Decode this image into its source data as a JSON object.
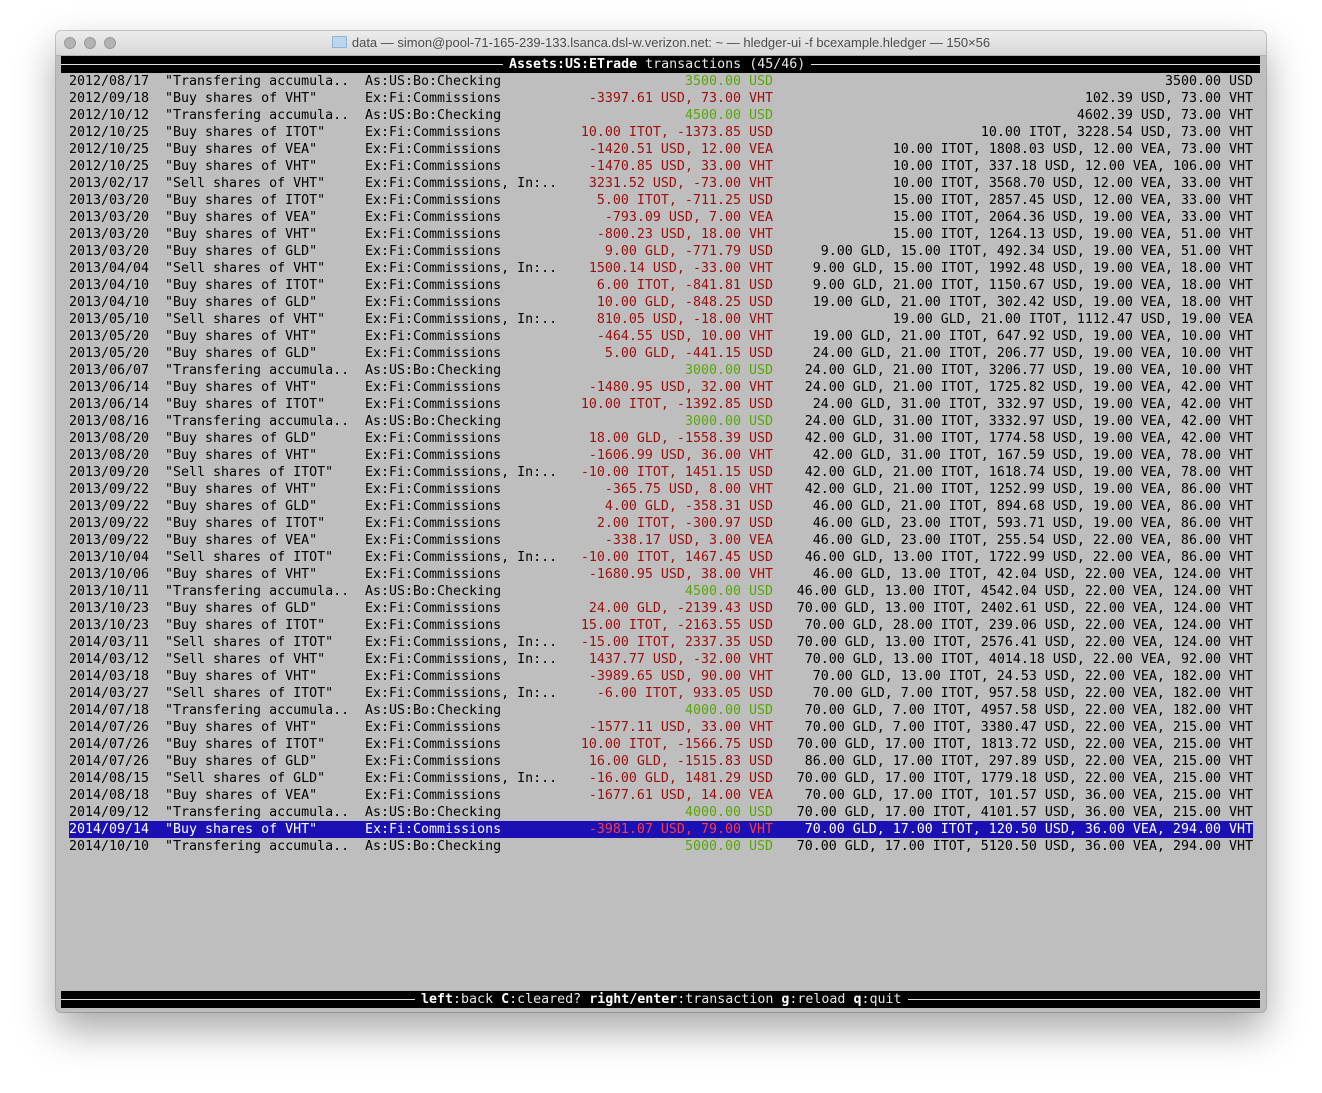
{
  "window": {
    "title": "data — simon@pool-71-165-239-133.lsanca.dsl-w.verizon.net: ~ — hledger-ui -f bcexample.hledger — 150×56"
  },
  "header": {
    "account": "Assets:US:ETrade",
    "label": "transactions",
    "position": "(45/46)"
  },
  "colors": {
    "inflow": "#5aa60a",
    "outflow": "#9b0f0f",
    "selection": "#1b10b3",
    "background": "#bebebe"
  },
  "selected_index": 44,
  "rows": [
    {
      "date": "2012/08/17",
      "desc": "\"Transfering accumula..",
      "account": "As:US:Bo:Checking",
      "amount": "3500.00 USD",
      "balance": "3500.00 USD",
      "kind": "in"
    },
    {
      "date": "2012/09/18",
      "desc": "\"Buy shares of VHT\"",
      "account": "Ex:Fi:Commissions",
      "amount": "-3397.61 USD, 73.00 VHT",
      "balance": "102.39 USD, 73.00 VHT",
      "kind": "out"
    },
    {
      "date": "2012/10/12",
      "desc": "\"Transfering accumula..",
      "account": "As:US:Bo:Checking",
      "amount": "4500.00 USD",
      "balance": "4602.39 USD, 73.00 VHT",
      "kind": "in"
    },
    {
      "date": "2012/10/25",
      "desc": "\"Buy shares of ITOT\"",
      "account": "Ex:Fi:Commissions",
      "amount": "10.00 ITOT, -1373.85 USD",
      "balance": "10.00 ITOT, 3228.54 USD, 73.00 VHT",
      "kind": "out"
    },
    {
      "date": "2012/10/25",
      "desc": "\"Buy shares of VEA\"",
      "account": "Ex:Fi:Commissions",
      "amount": "-1420.51 USD, 12.00 VEA",
      "balance": "10.00 ITOT, 1808.03 USD, 12.00 VEA, 73.00 VHT",
      "kind": "out"
    },
    {
      "date": "2012/10/25",
      "desc": "\"Buy shares of VHT\"",
      "account": "Ex:Fi:Commissions",
      "amount": "-1470.85 USD, 33.00 VHT",
      "balance": "10.00 ITOT, 337.18 USD, 12.00 VEA, 106.00 VHT",
      "kind": "out"
    },
    {
      "date": "2013/02/17",
      "desc": "\"Sell shares of VHT\"",
      "account": "Ex:Fi:Commissions, In:..",
      "amount": "3231.52 USD, -73.00 VHT",
      "balance": "10.00 ITOT, 3568.70 USD, 12.00 VEA, 33.00 VHT",
      "kind": "out"
    },
    {
      "date": "2013/03/20",
      "desc": "\"Buy shares of ITOT\"",
      "account": "Ex:Fi:Commissions",
      "amount": "5.00 ITOT, -711.25 USD",
      "balance": "15.00 ITOT, 2857.45 USD, 12.00 VEA, 33.00 VHT",
      "kind": "out"
    },
    {
      "date": "2013/03/20",
      "desc": "\"Buy shares of VEA\"",
      "account": "Ex:Fi:Commissions",
      "amount": "-793.09 USD, 7.00 VEA",
      "balance": "15.00 ITOT, 2064.36 USD, 19.00 VEA, 33.00 VHT",
      "kind": "out"
    },
    {
      "date": "2013/03/20",
      "desc": "\"Buy shares of VHT\"",
      "account": "Ex:Fi:Commissions",
      "amount": "-800.23 USD, 18.00 VHT",
      "balance": "15.00 ITOT, 1264.13 USD, 19.00 VEA, 51.00 VHT",
      "kind": "out"
    },
    {
      "date": "2013/03/20",
      "desc": "\"Buy shares of GLD\"",
      "account": "Ex:Fi:Commissions",
      "amount": "9.00 GLD, -771.79 USD",
      "balance": "9.00 GLD, 15.00 ITOT, 492.34 USD, 19.00 VEA, 51.00 VHT",
      "kind": "out"
    },
    {
      "date": "2013/04/04",
      "desc": "\"Sell shares of VHT\"",
      "account": "Ex:Fi:Commissions, In:..",
      "amount": "1500.14 USD, -33.00 VHT",
      "balance": "9.00 GLD, 15.00 ITOT, 1992.48 USD, 19.00 VEA, 18.00 VHT",
      "kind": "out"
    },
    {
      "date": "2013/04/10",
      "desc": "\"Buy shares of ITOT\"",
      "account": "Ex:Fi:Commissions",
      "amount": "6.00 ITOT, -841.81 USD",
      "balance": "9.00 GLD, 21.00 ITOT, 1150.67 USD, 19.00 VEA, 18.00 VHT",
      "kind": "out"
    },
    {
      "date": "2013/04/10",
      "desc": "\"Buy shares of GLD\"",
      "account": "Ex:Fi:Commissions",
      "amount": "10.00 GLD, -848.25 USD",
      "balance": "19.00 GLD, 21.00 ITOT, 302.42 USD, 19.00 VEA, 18.00 VHT",
      "kind": "out"
    },
    {
      "date": "2013/05/10",
      "desc": "\"Sell shares of VHT\"",
      "account": "Ex:Fi:Commissions, In:..",
      "amount": "810.05 USD, -18.00 VHT",
      "balance": "19.00 GLD, 21.00 ITOT, 1112.47 USD, 19.00 VEA",
      "kind": "out"
    },
    {
      "date": "2013/05/20",
      "desc": "\"Buy shares of VHT\"",
      "account": "Ex:Fi:Commissions",
      "amount": "-464.55 USD, 10.00 VHT",
      "balance": "19.00 GLD, 21.00 ITOT, 647.92 USD, 19.00 VEA, 10.00 VHT",
      "kind": "out"
    },
    {
      "date": "2013/05/20",
      "desc": "\"Buy shares of GLD\"",
      "account": "Ex:Fi:Commissions",
      "amount": "5.00 GLD, -441.15 USD",
      "balance": "24.00 GLD, 21.00 ITOT, 206.77 USD, 19.00 VEA, 10.00 VHT",
      "kind": "out"
    },
    {
      "date": "2013/06/07",
      "desc": "\"Transfering accumula..",
      "account": "As:US:Bo:Checking",
      "amount": "3000.00 USD",
      "balance": "24.00 GLD, 21.00 ITOT, 3206.77 USD, 19.00 VEA, 10.00 VHT",
      "kind": "in"
    },
    {
      "date": "2013/06/14",
      "desc": "\"Buy shares of VHT\"",
      "account": "Ex:Fi:Commissions",
      "amount": "-1480.95 USD, 32.00 VHT",
      "balance": "24.00 GLD, 21.00 ITOT, 1725.82 USD, 19.00 VEA, 42.00 VHT",
      "kind": "out"
    },
    {
      "date": "2013/06/14",
      "desc": "\"Buy shares of ITOT\"",
      "account": "Ex:Fi:Commissions",
      "amount": "10.00 ITOT, -1392.85 USD",
      "balance": "24.00 GLD, 31.00 ITOT, 332.97 USD, 19.00 VEA, 42.00 VHT",
      "kind": "out"
    },
    {
      "date": "2013/08/16",
      "desc": "\"Transfering accumula..",
      "account": "As:US:Bo:Checking",
      "amount": "3000.00 USD",
      "balance": "24.00 GLD, 31.00 ITOT, 3332.97 USD, 19.00 VEA, 42.00 VHT",
      "kind": "in"
    },
    {
      "date": "2013/08/20",
      "desc": "\"Buy shares of GLD\"",
      "account": "Ex:Fi:Commissions",
      "amount": "18.00 GLD, -1558.39 USD",
      "balance": "42.00 GLD, 31.00 ITOT, 1774.58 USD, 19.00 VEA, 42.00 VHT",
      "kind": "out"
    },
    {
      "date": "2013/08/20",
      "desc": "\"Buy shares of VHT\"",
      "account": "Ex:Fi:Commissions",
      "amount": "-1606.99 USD, 36.00 VHT",
      "balance": "42.00 GLD, 31.00 ITOT, 167.59 USD, 19.00 VEA, 78.00 VHT",
      "kind": "out"
    },
    {
      "date": "2013/09/20",
      "desc": "\"Sell shares of ITOT\"",
      "account": "Ex:Fi:Commissions, In:..",
      "amount": "-10.00 ITOT, 1451.15 USD",
      "balance": "42.00 GLD, 21.00 ITOT, 1618.74 USD, 19.00 VEA, 78.00 VHT",
      "kind": "out"
    },
    {
      "date": "2013/09/22",
      "desc": "\"Buy shares of VHT\"",
      "account": "Ex:Fi:Commissions",
      "amount": "-365.75 USD, 8.00 VHT",
      "balance": "42.00 GLD, 21.00 ITOT, 1252.99 USD, 19.00 VEA, 86.00 VHT",
      "kind": "out"
    },
    {
      "date": "2013/09/22",
      "desc": "\"Buy shares of GLD\"",
      "account": "Ex:Fi:Commissions",
      "amount": "4.00 GLD, -358.31 USD",
      "balance": "46.00 GLD, 21.00 ITOT, 894.68 USD, 19.00 VEA, 86.00 VHT",
      "kind": "out"
    },
    {
      "date": "2013/09/22",
      "desc": "\"Buy shares of ITOT\"",
      "account": "Ex:Fi:Commissions",
      "amount": "2.00 ITOT, -300.97 USD",
      "balance": "46.00 GLD, 23.00 ITOT, 593.71 USD, 19.00 VEA, 86.00 VHT",
      "kind": "out"
    },
    {
      "date": "2013/09/22",
      "desc": "\"Buy shares of VEA\"",
      "account": "Ex:Fi:Commissions",
      "amount": "-338.17 USD, 3.00 VEA",
      "balance": "46.00 GLD, 23.00 ITOT, 255.54 USD, 22.00 VEA, 86.00 VHT",
      "kind": "out"
    },
    {
      "date": "2013/10/04",
      "desc": "\"Sell shares of ITOT\"",
      "account": "Ex:Fi:Commissions, In:..",
      "amount": "-10.00 ITOT, 1467.45 USD",
      "balance": "46.00 GLD, 13.00 ITOT, 1722.99 USD, 22.00 VEA, 86.00 VHT",
      "kind": "out"
    },
    {
      "date": "2013/10/06",
      "desc": "\"Buy shares of VHT\"",
      "account": "Ex:Fi:Commissions",
      "amount": "-1680.95 USD, 38.00 VHT",
      "balance": "46.00 GLD, 13.00 ITOT, 42.04 USD, 22.00 VEA, 124.00 VHT",
      "kind": "out"
    },
    {
      "date": "2013/10/11",
      "desc": "\"Transfering accumula..",
      "account": "As:US:Bo:Checking",
      "amount": "4500.00 USD",
      "balance": "46.00 GLD, 13.00 ITOT, 4542.04 USD, 22.00 VEA, 124.00 VHT",
      "kind": "in"
    },
    {
      "date": "2013/10/23",
      "desc": "\"Buy shares of GLD\"",
      "account": "Ex:Fi:Commissions",
      "amount": "24.00 GLD, -2139.43 USD",
      "balance": "70.00 GLD, 13.00 ITOT, 2402.61 USD, 22.00 VEA, 124.00 VHT",
      "kind": "out"
    },
    {
      "date": "2013/10/23",
      "desc": "\"Buy shares of ITOT\"",
      "account": "Ex:Fi:Commissions",
      "amount": "15.00 ITOT, -2163.55 USD",
      "balance": "70.00 GLD, 28.00 ITOT, 239.06 USD, 22.00 VEA, 124.00 VHT",
      "kind": "out"
    },
    {
      "date": "2014/03/11",
      "desc": "\"Sell shares of ITOT\"",
      "account": "Ex:Fi:Commissions, In:..",
      "amount": "-15.00 ITOT, 2337.35 USD",
      "balance": "70.00 GLD, 13.00 ITOT, 2576.41 USD, 22.00 VEA, 124.00 VHT",
      "kind": "out"
    },
    {
      "date": "2014/03/12",
      "desc": "\"Sell shares of VHT\"",
      "account": "Ex:Fi:Commissions, In:..",
      "amount": "1437.77 USD, -32.00 VHT",
      "balance": "70.00 GLD, 13.00 ITOT, 4014.18 USD, 22.00 VEA, 92.00 VHT",
      "kind": "out"
    },
    {
      "date": "2014/03/18",
      "desc": "\"Buy shares of VHT\"",
      "account": "Ex:Fi:Commissions",
      "amount": "-3989.65 USD, 90.00 VHT",
      "balance": "70.00 GLD, 13.00 ITOT, 24.53 USD, 22.00 VEA, 182.00 VHT",
      "kind": "out"
    },
    {
      "date": "2014/03/27",
      "desc": "\"Sell shares of ITOT\"",
      "account": "Ex:Fi:Commissions, In:..",
      "amount": "-6.00 ITOT, 933.05 USD",
      "balance": "70.00 GLD, 7.00 ITOT, 957.58 USD, 22.00 VEA, 182.00 VHT",
      "kind": "out"
    },
    {
      "date": "2014/07/18",
      "desc": "\"Transfering accumula..",
      "account": "As:US:Bo:Checking",
      "amount": "4000.00 USD",
      "balance": "70.00 GLD, 7.00 ITOT, 4957.58 USD, 22.00 VEA, 182.00 VHT",
      "kind": "in"
    },
    {
      "date": "2014/07/26",
      "desc": "\"Buy shares of VHT\"",
      "account": "Ex:Fi:Commissions",
      "amount": "-1577.11 USD, 33.00 VHT",
      "balance": "70.00 GLD, 7.00 ITOT, 3380.47 USD, 22.00 VEA, 215.00 VHT",
      "kind": "out"
    },
    {
      "date": "2014/07/26",
      "desc": "\"Buy shares of ITOT\"",
      "account": "Ex:Fi:Commissions",
      "amount": "10.00 ITOT, -1566.75 USD",
      "balance": "70.00 GLD, 17.00 ITOT, 1813.72 USD, 22.00 VEA, 215.00 VHT",
      "kind": "out"
    },
    {
      "date": "2014/07/26",
      "desc": "\"Buy shares of GLD\"",
      "account": "Ex:Fi:Commissions",
      "amount": "16.00 GLD, -1515.83 USD",
      "balance": "86.00 GLD, 17.00 ITOT, 297.89 USD, 22.00 VEA, 215.00 VHT",
      "kind": "out"
    },
    {
      "date": "2014/08/15",
      "desc": "\"Sell shares of GLD\"",
      "account": "Ex:Fi:Commissions, In:..",
      "amount": "-16.00 GLD, 1481.29 USD",
      "balance": "70.00 GLD, 17.00 ITOT, 1779.18 USD, 22.00 VEA, 215.00 VHT",
      "kind": "out"
    },
    {
      "date": "2014/08/18",
      "desc": "\"Buy shares of VEA\"",
      "account": "Ex:Fi:Commissions",
      "amount": "-1677.61 USD, 14.00 VEA",
      "balance": "70.00 GLD, 17.00 ITOT, 101.57 USD, 36.00 VEA, 215.00 VHT",
      "kind": "out"
    },
    {
      "date": "2014/09/12",
      "desc": "\"Transfering accumula..",
      "account": "As:US:Bo:Checking",
      "amount": "4000.00 USD",
      "balance": "70.00 GLD, 17.00 ITOT, 4101.57 USD, 36.00 VEA, 215.00 VHT",
      "kind": "in"
    },
    {
      "date": "2014/09/14",
      "desc": "\"Buy shares of VHT\"",
      "account": "Ex:Fi:Commissions",
      "amount": "-3981.07 USD, 79.00 VHT",
      "balance": "70.00 GLD, 17.00 ITOT, 120.50 USD, 36.00 VEA, 294.00 VHT",
      "kind": "out"
    },
    {
      "date": "2014/10/10",
      "desc": "\"Transfering accumula..",
      "account": "As:US:Bo:Checking",
      "amount": "5000.00 USD",
      "balance": "70.00 GLD, 17.00 ITOT, 5120.50 USD, 36.00 VEA, 294.00 VHT",
      "kind": "in"
    }
  ],
  "footer": {
    "keys": [
      {
        "key": "left",
        "action": "back"
      },
      {
        "key": "C",
        "action": "cleared?"
      },
      {
        "key": "right/enter",
        "action": "transaction"
      },
      {
        "key": "g",
        "action": "reload"
      },
      {
        "key": "q",
        "action": "quit"
      }
    ]
  }
}
